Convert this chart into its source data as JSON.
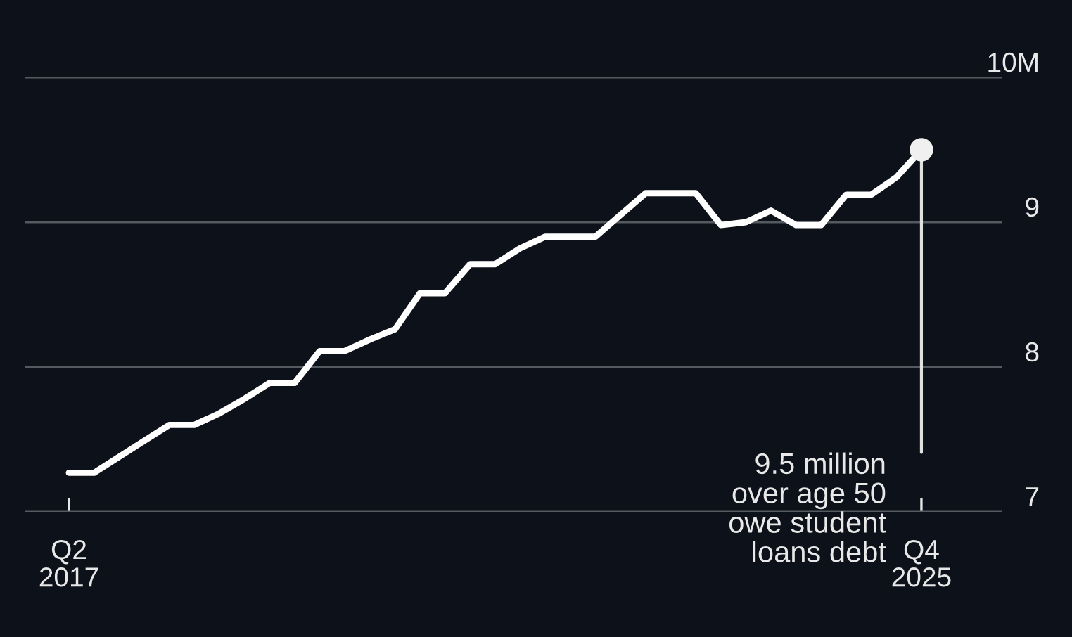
{
  "chart_data": {
    "type": "line",
    "categories": [
      "Q2\n2017",
      null,
      null,
      null,
      null,
      null,
      null,
      null,
      null,
      null,
      null,
      null,
      null,
      null,
      null,
      null,
      null,
      null,
      null,
      null,
      null,
      null,
      null,
      null,
      null,
      null,
      null,
      null,
      null,
      null,
      null,
      null,
      null,
      null,
      "Q4\n2025"
    ],
    "series": [
      {
        "color": "#ffffff",
        "values": [
          7.27,
          7.27,
          7.38,
          7.49,
          7.6,
          7.6,
          7.68,
          7.78,
          7.89,
          7.89,
          8.11,
          8.11,
          8.19,
          8.26,
          8.51,
          8.51,
          8.71,
          8.71,
          8.82,
          8.9,
          8.9,
          8.9,
          9.05,
          9.2,
          9.2,
          9.2,
          8.98,
          9.0,
          9.08,
          8.98,
          8.98,
          9.19,
          9.19,
          9.31,
          9.5
        ]
      }
    ],
    "ylim": [
      7,
      10
    ],
    "yticks": [
      7,
      8,
      9,
      {
        "value": 10,
        "label": "10M"
      }
    ],
    "grid": "y",
    "marker": "none",
    "line_style": "solid",
    "annotations": [
      {
        "text": "9.5 million\nover age 50\nowe student\nloans debt",
        "x": "Q4\n2025",
        "y": 9.5
      }
    ]
  }
}
